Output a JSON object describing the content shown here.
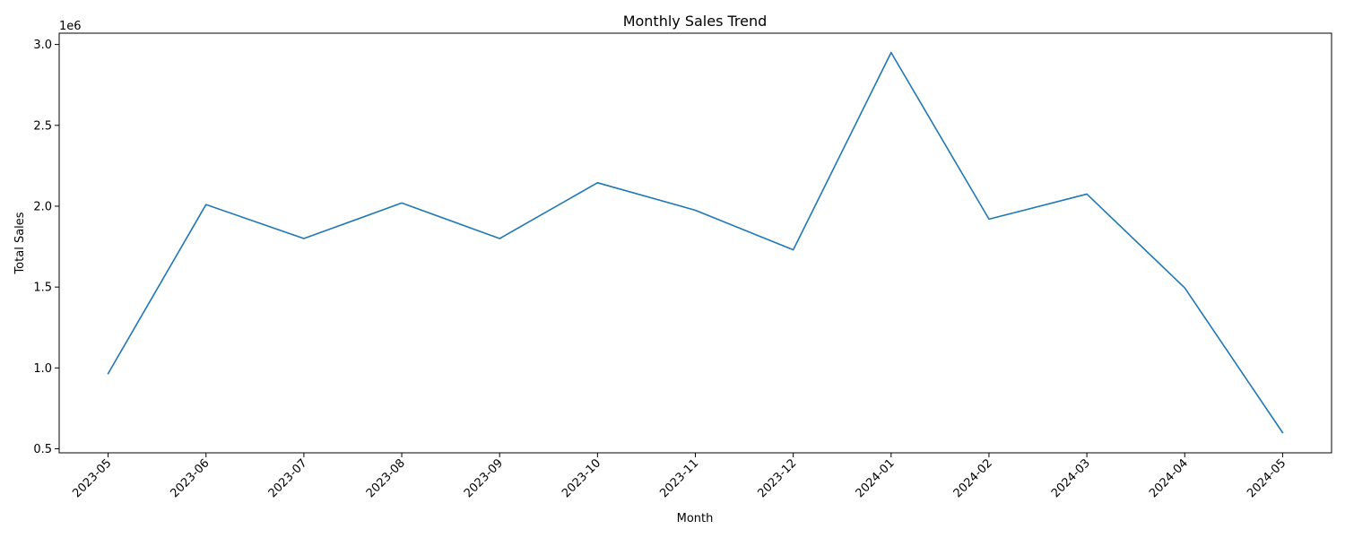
{
  "chart_data": {
    "type": "line",
    "title": "Monthly Sales Trend",
    "xlabel": "Month",
    "ylabel": "Total Sales",
    "y_offset_label": "1e6",
    "categories": [
      "2023-05",
      "2023-06",
      "2023-07",
      "2023-08",
      "2023-09",
      "2023-10",
      "2023-11",
      "2023-12",
      "2024-01",
      "2024-02",
      "2024-03",
      "2024-04",
      "2024-05"
    ],
    "series": [
      {
        "values": [
          965000,
          2010000,
          1800000,
          2020000,
          1800000,
          2145000,
          1975000,
          1730000,
          2950000,
          1920000,
          2075000,
          1495000,
          600000
        ]
      }
    ],
    "yticks": [
      0.5,
      1.0,
      1.5,
      2.0,
      2.5,
      3.0
    ],
    "ytick_labels": [
      "0.5",
      "1.0",
      "1.5",
      "2.0",
      "2.5",
      "3.0"
    ],
    "ylim": [
      475000,
      3070000
    ],
    "grid": false,
    "line_color": "#1f77b4"
  }
}
